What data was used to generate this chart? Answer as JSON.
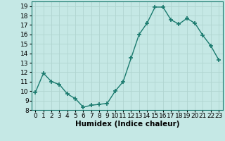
{
  "x": [
    0,
    1,
    2,
    3,
    4,
    5,
    6,
    7,
    8,
    9,
    10,
    11,
    12,
    13,
    14,
    15,
    16,
    17,
    18,
    19,
    20,
    21,
    22,
    23
  ],
  "y": [
    9.9,
    11.9,
    11.0,
    10.7,
    9.7,
    9.2,
    8.3,
    8.5,
    8.6,
    8.7,
    10.0,
    11.0,
    13.5,
    16.0,
    17.2,
    18.9,
    18.9,
    17.55,
    17.1,
    17.7,
    17.2,
    15.9,
    14.8,
    13.3
  ],
  "line_color": "#1a7a6e",
  "marker": "+",
  "marker_size": 4,
  "bg_color": "#c5e8e5",
  "grid_color": "#b0d4d0",
  "xlabel": "Humidex (Indice chaleur)",
  "ylim": [
    8,
    19.5
  ],
  "xlim": [
    -0.5,
    23.5
  ],
  "yticks": [
    8,
    9,
    10,
    11,
    12,
    13,
    14,
    15,
    16,
    17,
    18,
    19
  ],
  "xticks": [
    0,
    1,
    2,
    3,
    4,
    5,
    6,
    7,
    8,
    9,
    10,
    11,
    12,
    13,
    14,
    15,
    16,
    17,
    18,
    19,
    20,
    21,
    22,
    23
  ],
  "font_size": 6.5,
  "xlabel_fontsize": 7.5,
  "line_width": 1.0,
  "marker_color": "#1a7a6e"
}
